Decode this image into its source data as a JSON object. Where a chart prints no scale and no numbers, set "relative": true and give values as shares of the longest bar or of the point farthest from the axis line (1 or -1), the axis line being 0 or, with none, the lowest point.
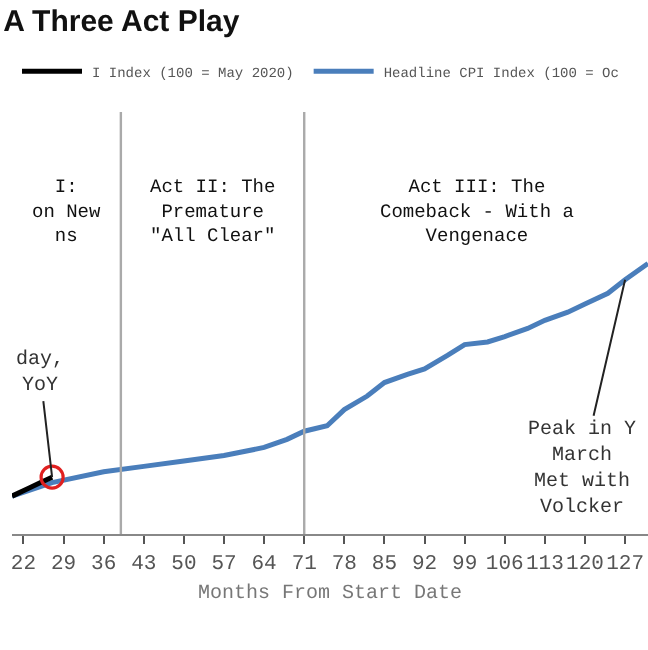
{
  "chart_data": {
    "type": "line",
    "title": "A Three Act Play",
    "xlabel": "Months From Start Date",
    "relative": true,
    "xlim": [
      20,
      131
    ],
    "xticks": [
      22,
      29,
      36,
      43,
      50,
      57,
      64,
      71,
      78,
      85,
      92,
      99,
      106,
      113,
      120,
      127
    ],
    "series": [
      {
        "name": "I Index (100 = May 2020)",
        "color": "#000000",
        "x": [
          20,
          23,
          25,
          27
        ],
        "values": [
          0.14,
          0.17,
          0.19,
          0.21
        ]
      },
      {
        "name": "Headline CPI Index (100 = Oc",
        "color": "#4a7ebb",
        "x": [
          20,
          27,
          36,
          43,
          50,
          57,
          64,
          68,
          71,
          75,
          78,
          82,
          85,
          89,
          92,
          96,
          99,
          103,
          106,
          110,
          113,
          117,
          120,
          124,
          127,
          131
        ],
        "values": [
          0.14,
          0.19,
          0.23,
          0.25,
          0.27,
          0.29,
          0.32,
          0.35,
          0.38,
          0.4,
          0.46,
          0.51,
          0.56,
          0.59,
          0.61,
          0.66,
          0.7,
          0.71,
          0.73,
          0.76,
          0.79,
          0.82,
          0.85,
          0.89,
          0.94,
          1.0
        ]
      }
    ],
    "ref_lines": [
      {
        "axis": "x",
        "value": 39,
        "color": "#aaaaaa"
      },
      {
        "axis": "x",
        "value": 71,
        "color": "#aaaaaa"
      }
    ],
    "annotations": [
      "I:\non New\nns",
      "Act II: The\nPremature\n\"All Clear\"",
      "Act III: The\nComeback - With a\nVengenace",
      {
        "text": "day,\nYoY",
        "x": 27,
        "y": 0.21
      },
      {
        "text": "Peak in Y\nMarch\nMet with\nVolcker",
        "x": 127,
        "y": 0.94
      }
    ],
    "legend": "top left",
    "grid": false,
    "line_style": "solid",
    "marker": "none"
  }
}
